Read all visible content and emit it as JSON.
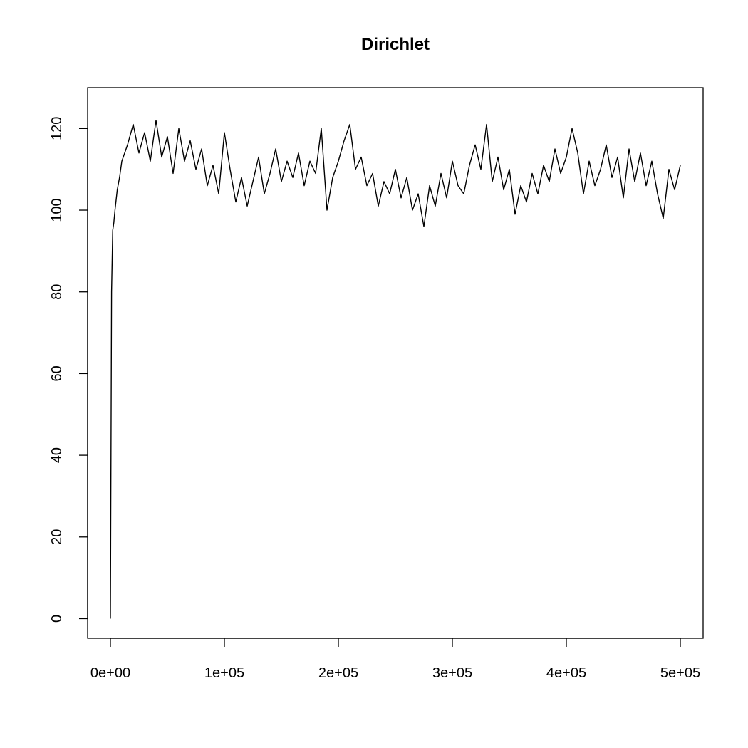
{
  "chart_data": {
    "type": "line",
    "title": "Dirichlet",
    "color": "#000000",
    "x": [
      0,
      1000,
      2000,
      3000,
      4000,
      6000,
      8000,
      10000,
      15000,
      20000,
      25000,
      30000,
      35000,
      40000,
      45000,
      50000,
      55000,
      60000,
      65000,
      70000,
      75000,
      80000,
      85000,
      90000,
      95000,
      100000,
      105000,
      110000,
      115000,
      120000,
      125000,
      130000,
      135000,
      140000,
      145000,
      150000,
      155000,
      160000,
      165000,
      170000,
      175000,
      180000,
      185000,
      190000,
      195000,
      200000,
      205000,
      210000,
      215000,
      220000,
      225000,
      230000,
      235000,
      240000,
      245000,
      250000,
      255000,
      260000,
      265000,
      270000,
      275000,
      280000,
      285000,
      290000,
      295000,
      300000,
      305000,
      310000,
      315000,
      320000,
      325000,
      330000,
      335000,
      340000,
      345000,
      350000,
      355000,
      360000,
      365000,
      370000,
      375000,
      380000,
      385000,
      390000,
      395000,
      400000,
      405000,
      410000,
      415000,
      420000,
      425000,
      430000,
      435000,
      440000,
      445000,
      450000,
      455000,
      460000,
      465000,
      470000,
      475000,
      480000,
      485000,
      490000,
      495000,
      500000
    ],
    "values": [
      0,
      80,
      95,
      97,
      100,
      105,
      108,
      112,
      116,
      121,
      114,
      119,
      112,
      122,
      113,
      118,
      109,
      120,
      112,
      117,
      110,
      115,
      106,
      111,
      104,
      119,
      110,
      102,
      108,
      101,
      107,
      113,
      104,
      109,
      115,
      107,
      112,
      108,
      114,
      106,
      112,
      109,
      120,
      100,
      108,
      112,
      117,
      121,
      110,
      113,
      106,
      109,
      101,
      107,
      104,
      110,
      103,
      108,
      100,
      104,
      96,
      106,
      101,
      109,
      103,
      112,
      106,
      104,
      111,
      116,
      110,
      121,
      107,
      113,
      105,
      110,
      99,
      106,
      102,
      109,
      104,
      111,
      107,
      115,
      109,
      113,
      120,
      114,
      104,
      112,
      106,
      110,
      116,
      108,
      113,
      103,
      115,
      107,
      114,
      106,
      112,
      104,
      98,
      110,
      105,
      111
    ],
    "xlim": [
      -20000,
      520000
    ],
    "ylim": [
      -4.8,
      130
    ],
    "xticks": [
      {
        "value": 0,
        "label": "0e+00"
      },
      {
        "value": 100000,
        "label": "1e+05"
      },
      {
        "value": 200000,
        "label": "2e+05"
      },
      {
        "value": 300000,
        "label": "3e+05"
      },
      {
        "value": 400000,
        "label": "4e+05"
      },
      {
        "value": 500000,
        "label": "5e+05"
      }
    ],
    "yticks": [
      0,
      20,
      40,
      60,
      80,
      100,
      120
    ]
  }
}
